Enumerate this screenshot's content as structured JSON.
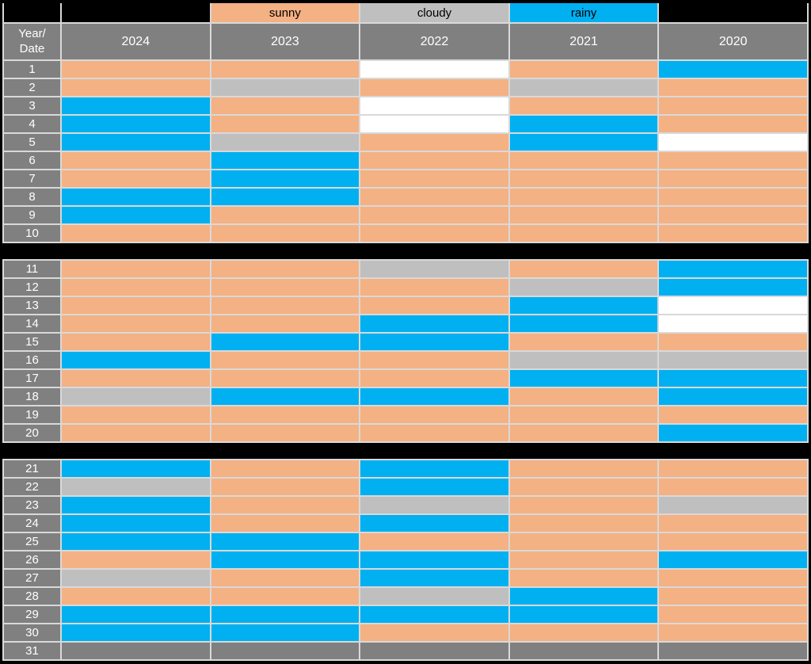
{
  "colors": {
    "sunny": "#F4B183",
    "cloudy": "#BFBFBF",
    "rainy": "#00B0F0",
    "blank": "#FFFFFF",
    "na": "#808080",
    "header": "#808080",
    "black": "#000000",
    "grid_line": "#D9D9D9",
    "background": "#000000"
  },
  "legend": {
    "corner": {
      "label": "",
      "key": "black"
    },
    "items": [
      {
        "label": "",
        "key": "black"
      },
      {
        "label": "sunny",
        "key": "sunny"
      },
      {
        "label": "cloudy",
        "key": "cloudy"
      },
      {
        "label": "rainy",
        "key": "rainy"
      },
      {
        "label": "",
        "key": "black"
      }
    ]
  },
  "header": {
    "corner_line1": "Year/",
    "corner_line2": "Date",
    "years": [
      "2024",
      "2023",
      "2022",
      "2021",
      "2020"
    ]
  },
  "chart_data": {
    "type": "heatmap",
    "title": "",
    "row_axis_label": "Date",
    "col_axis_label": "Year",
    "columns": [
      "2024",
      "2023",
      "2022",
      "2021",
      "2020"
    ],
    "legend_entries": [
      "sunny",
      "cloudy",
      "rainy"
    ],
    "value_meaning": {
      "sunny": "orange",
      "cloudy": "light gray",
      "rainy": "blue",
      "blank": "no data (white)",
      "na": "not applicable (dark gray)"
    },
    "blocks": [
      [
        0,
        10
      ],
      [
        10,
        20
      ],
      [
        20,
        31
      ]
    ],
    "rows": [
      {
        "date": "1",
        "values": [
          "sunny",
          "sunny",
          "blank",
          "sunny",
          "rainy"
        ]
      },
      {
        "date": "2",
        "values": [
          "sunny",
          "cloudy",
          "sunny",
          "cloudy",
          "sunny"
        ]
      },
      {
        "date": "3",
        "values": [
          "rainy",
          "sunny",
          "blank",
          "sunny",
          "sunny"
        ]
      },
      {
        "date": "4",
        "values": [
          "rainy",
          "sunny",
          "blank",
          "rainy",
          "sunny"
        ]
      },
      {
        "date": "5",
        "values": [
          "rainy",
          "cloudy",
          "sunny",
          "rainy",
          "blank"
        ]
      },
      {
        "date": "6",
        "values": [
          "sunny",
          "rainy",
          "sunny",
          "sunny",
          "sunny"
        ]
      },
      {
        "date": "7",
        "values": [
          "sunny",
          "rainy",
          "sunny",
          "sunny",
          "sunny"
        ]
      },
      {
        "date": "8",
        "values": [
          "rainy",
          "rainy",
          "sunny",
          "sunny",
          "sunny"
        ]
      },
      {
        "date": "9",
        "values": [
          "rainy",
          "sunny",
          "sunny",
          "sunny",
          "sunny"
        ]
      },
      {
        "date": "10",
        "values": [
          "sunny",
          "sunny",
          "sunny",
          "sunny",
          "sunny"
        ]
      },
      {
        "date": "11",
        "values": [
          "sunny",
          "sunny",
          "cloudy",
          "sunny",
          "rainy"
        ]
      },
      {
        "date": "12",
        "values": [
          "sunny",
          "sunny",
          "sunny",
          "cloudy",
          "rainy"
        ]
      },
      {
        "date": "13",
        "values": [
          "sunny",
          "sunny",
          "sunny",
          "rainy",
          "blank"
        ]
      },
      {
        "date": "14",
        "values": [
          "sunny",
          "sunny",
          "rainy",
          "rainy",
          "blank"
        ]
      },
      {
        "date": "15",
        "values": [
          "sunny",
          "rainy",
          "rainy",
          "sunny",
          "sunny"
        ]
      },
      {
        "date": "16",
        "values": [
          "rainy",
          "sunny",
          "sunny",
          "cloudy",
          "cloudy"
        ]
      },
      {
        "date": "17",
        "values": [
          "sunny",
          "sunny",
          "sunny",
          "rainy",
          "rainy"
        ]
      },
      {
        "date": "18",
        "values": [
          "cloudy",
          "rainy",
          "rainy",
          "sunny",
          "rainy"
        ]
      },
      {
        "date": "19",
        "values": [
          "sunny",
          "sunny",
          "sunny",
          "sunny",
          "sunny"
        ]
      },
      {
        "date": "20",
        "values": [
          "sunny",
          "sunny",
          "sunny",
          "sunny",
          "rainy"
        ]
      },
      {
        "date": "21",
        "values": [
          "rainy",
          "sunny",
          "rainy",
          "sunny",
          "sunny"
        ]
      },
      {
        "date": "22",
        "values": [
          "cloudy",
          "sunny",
          "rainy",
          "sunny",
          "sunny"
        ]
      },
      {
        "date": "23",
        "values": [
          "rainy",
          "sunny",
          "cloudy",
          "sunny",
          "cloudy"
        ]
      },
      {
        "date": "24",
        "values": [
          "rainy",
          "sunny",
          "rainy",
          "sunny",
          "sunny"
        ]
      },
      {
        "date": "25",
        "values": [
          "rainy",
          "rainy",
          "sunny",
          "sunny",
          "sunny"
        ]
      },
      {
        "date": "26",
        "values": [
          "sunny",
          "rainy",
          "rainy",
          "sunny",
          "rainy"
        ]
      },
      {
        "date": "27",
        "values": [
          "cloudy",
          "sunny",
          "rainy",
          "sunny",
          "sunny"
        ]
      },
      {
        "date": "28",
        "values": [
          "sunny",
          "sunny",
          "cloudy",
          "rainy",
          "sunny"
        ]
      },
      {
        "date": "29",
        "values": [
          "rainy",
          "rainy",
          "rainy",
          "rainy",
          "sunny"
        ]
      },
      {
        "date": "30",
        "values": [
          "rainy",
          "rainy",
          "sunny",
          "sunny",
          "sunny"
        ]
      },
      {
        "date": "31",
        "values": [
          "na",
          "na",
          "na",
          "na",
          "na"
        ]
      }
    ]
  }
}
